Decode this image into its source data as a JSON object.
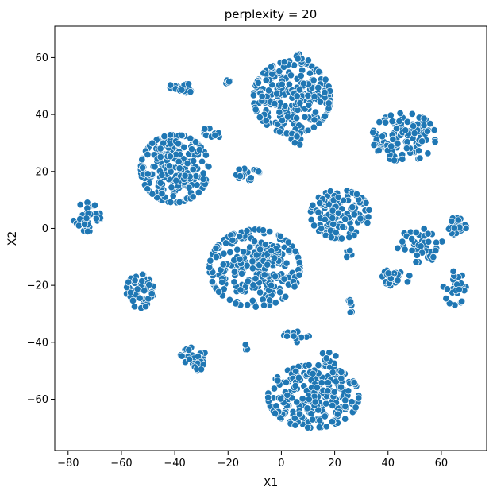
{
  "chart_data": {
    "type": "scatter",
    "title": "perplexity = 20",
    "xlabel": "X1",
    "ylabel": "X2",
    "xlim": [
      -85,
      77
    ],
    "ylim": [
      -78,
      71
    ],
    "xticks": [
      -80,
      -60,
      -40,
      -20,
      0,
      20,
      40,
      60
    ],
    "yticks": [
      -60,
      -40,
      -20,
      0,
      20,
      40,
      60
    ],
    "xtick_labels": [
      "−80",
      "−60",
      "−40",
      "−20",
      "0",
      "20",
      "40",
      "60"
    ],
    "ytick_labels": [
      "−60",
      "−40",
      "−20",
      "0",
      "20",
      "40",
      "60"
    ],
    "grid": false,
    "marker_color": "#1f77b4",
    "marker_edge_color": "#ffffff",
    "clusters": [
      {
        "cx": 4,
        "cy": 46,
        "sx": 8.5,
        "sy": 7.5,
        "n": 280
      },
      {
        "cx": -40,
        "cy": 21,
        "sx": 7.5,
        "sy": 7,
        "n": 230
      },
      {
        "cx": -10,
        "cy": -14,
        "sx": 10,
        "sy": 8,
        "n": 270
      },
      {
        "cx": 12,
        "cy": -59,
        "sx": 10,
        "sy": 6.5,
        "n": 260
      },
      {
        "cx": 22,
        "cy": 5,
        "sx": 6.5,
        "sy": 5,
        "n": 130
      },
      {
        "cx": 46,
        "cy": 32,
        "sx": 7,
        "sy": 5,
        "n": 110
      },
      {
        "cx": 66,
        "cy": 1,
        "sx": 2,
        "sy": 2,
        "n": 30
      },
      {
        "cx": 52,
        "cy": -6,
        "sx": 5,
        "sy": 3.5,
        "n": 40
      },
      {
        "cx": 43,
        "cy": -17,
        "sx": 3,
        "sy": 2,
        "n": 25
      },
      {
        "cx": 65,
        "cy": -21,
        "sx": 2.5,
        "sy": 3.5,
        "n": 30
      },
      {
        "cx": -73,
        "cy": 4,
        "sx": 3,
        "sy": 3,
        "n": 40
      },
      {
        "cx": -53,
        "cy": -22,
        "sx": 3,
        "sy": 3.5,
        "n": 55
      },
      {
        "cx": -38,
        "cy": 49,
        "sx": 2.5,
        "sy": 1.5,
        "n": 20
      },
      {
        "cx": -25,
        "cy": 34,
        "sx": 2.5,
        "sy": 1.2,
        "n": 12
      },
      {
        "cx": -13,
        "cy": 19,
        "sx": 3,
        "sy": 1.2,
        "n": 18
      },
      {
        "cx": -33,
        "cy": -46,
        "sx": 3,
        "sy": 2.5,
        "n": 30
      },
      {
        "cx": 6,
        "cy": -38,
        "sx": 3,
        "sy": 1.5,
        "n": 12
      },
      {
        "cx": 26,
        "cy": -27,
        "sx": 0.6,
        "sy": 1.5,
        "n": 8
      },
      {
        "cx": 18,
        "cy": -46,
        "sx": 2,
        "sy": 2,
        "n": 10
      },
      {
        "cx": -20,
        "cy": 51,
        "sx": 1.5,
        "sy": 0.6,
        "n": 5
      },
      {
        "cx": 6,
        "cy": 31,
        "sx": 1.5,
        "sy": 1,
        "n": 8
      },
      {
        "cx": -13,
        "cy": -42,
        "sx": 0.8,
        "sy": 0.8,
        "n": 4
      },
      {
        "cx": 8,
        "cy": 60,
        "sx": 1.5,
        "sy": 1,
        "n": 6
      },
      {
        "cx": 25,
        "cy": -9,
        "sx": 0.8,
        "sy": 0.8,
        "n": 5
      }
    ]
  }
}
